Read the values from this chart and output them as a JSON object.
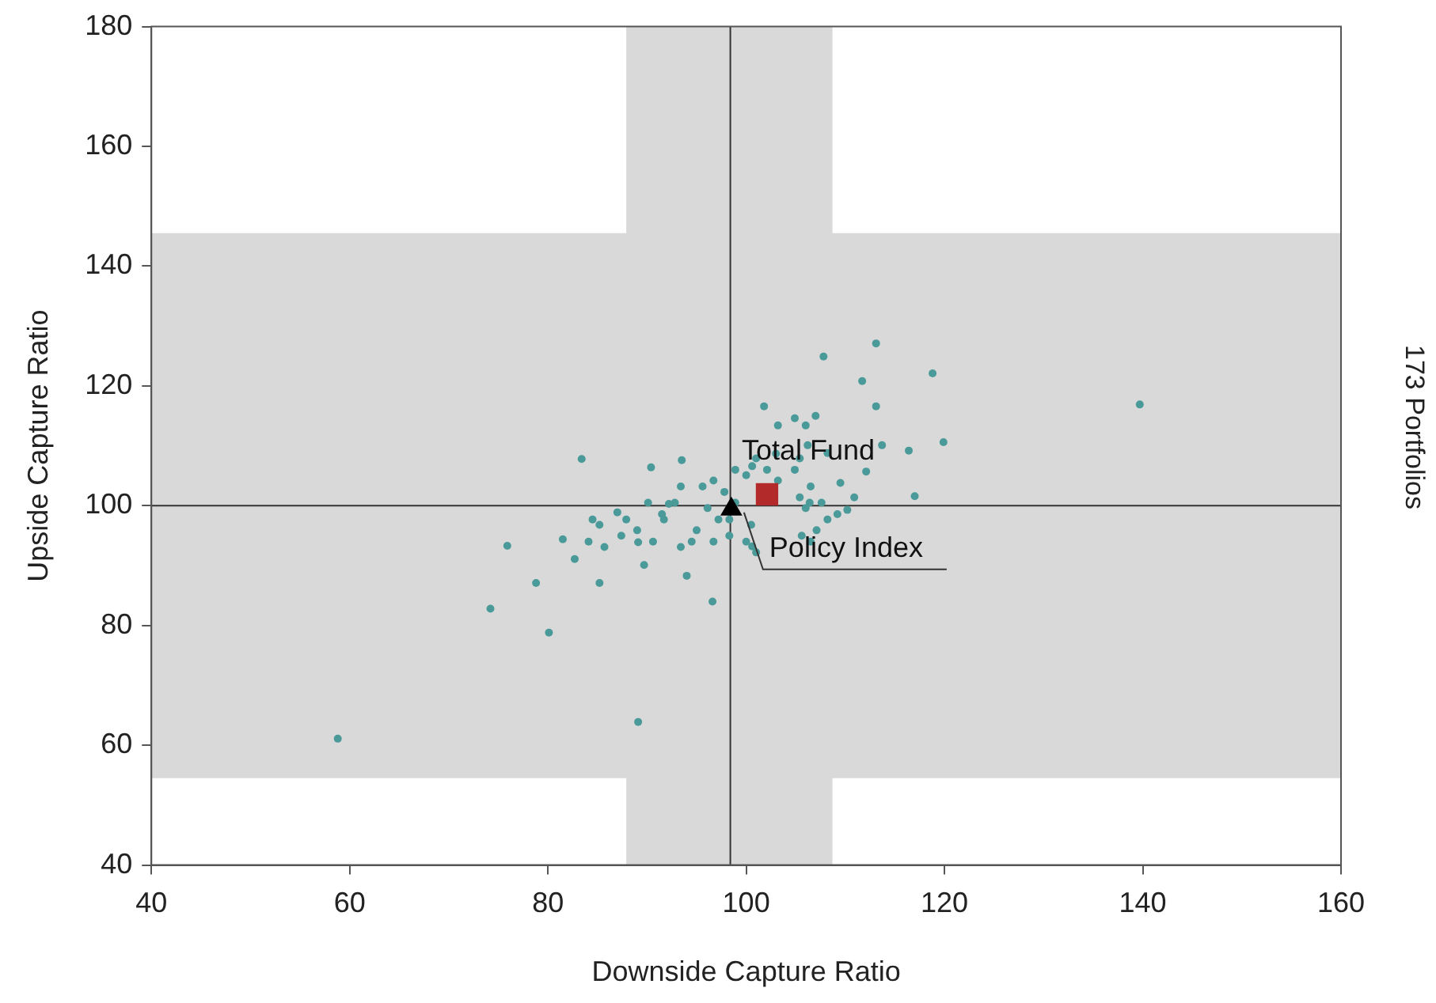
{
  "chart_data": {
    "type": "scatter",
    "xlabel": "Downside Capture Ratio",
    "ylabel": "Upside Capture Ratio",
    "annotations": [
      "173 Portfolios"
    ],
    "xlim": [
      40,
      160
    ],
    "xticks": [
      40,
      60,
      80,
      100,
      120,
      140,
      160
    ],
    "ylim": [
      40,
      180
    ],
    "yticks": [
      40,
      60,
      80,
      100,
      120,
      140,
      160,
      180
    ],
    "grid": false,
    "legend": false,
    "ref_lines": [
      {
        "axis": "x",
        "value": 98.4,
        "color": "#333333"
      },
      {
        "axis": "y",
        "value": 100,
        "color": "#333333"
      }
    ],
    "bands": [
      {
        "axis": "y",
        "from": 54.5,
        "to": 145.5,
        "color": "#d9d9d9"
      },
      {
        "axis": "x",
        "from": 87.9,
        "to": 108.7,
        "color": "#d9d9d9"
      }
    ],
    "series": [
      {
        "color": "#4a9a9a",
        "marker": "circle",
        "x": [
          58.8,
          89.1,
          74.2,
          80.1,
          78.8,
          75.9,
          82.7,
          85.2,
          81.5,
          84.5,
          83.4,
          89.7,
          89.1,
          94.0,
          96.6,
          90.4,
          93.5,
          87.0,
          92.2,
          101.8,
          104.9,
          107.0,
          107.8,
          113.1,
          111.7,
          113.1,
          118.8,
          113.7,
          116.4,
          119.9,
          112.1,
          109.5,
          117.0,
          110.2,
          139.7,
          106.2,
          100.6,
          103.0,
          100.6,
          105.6,
          106.4,
          95.6,
          96.7,
          97.8,
          100.0,
          98.9,
          96.1,
          97.2,
          95.0,
          98.3,
          96.7,
          94.5,
          93.4,
          100.0,
          101.0,
          105.4,
          106.5,
          107.6,
          108.2,
          107.1,
          106.0,
          103.2,
          104.9,
          102.1,
          91.7,
          90.6,
          89.0,
          87.4,
          85.7,
          84.1,
          85.2,
          87.9,
          90.1,
          93.4,
          92.8,
          91.5,
          98.3,
          100.5,
          106.5,
          110.9,
          109.2,
          105.4,
          108.2,
          103.2,
          106.0,
          98.9,
          101.0
        ],
        "values": [
          61.1,
          63.9,
          82.8,
          78.8,
          87.1,
          93.3,
          91.1,
          87.1,
          94.4,
          97.7,
          107.8,
          90.1,
          93.9,
          88.3,
          84.0,
          106.4,
          107.6,
          98.9,
          100.3,
          116.6,
          114.6,
          115.0,
          124.9,
          127.1,
          120.8,
          116.6,
          122.1,
          110.1,
          109.2,
          110.6,
          105.7,
          103.8,
          101.6,
          99.3,
          116.9,
          110.1,
          106.6,
          108.7,
          93.2,
          95.0,
          100.5,
          103.2,
          104.2,
          102.3,
          105.1,
          100.5,
          99.6,
          97.7,
          95.9,
          95.0,
          94.0,
          94.0,
          93.1,
          94.0,
          92.2,
          101.4,
          103.2,
          100.5,
          97.7,
          95.9,
          99.6,
          104.2,
          106.0,
          106.0,
          97.7,
          94.0,
          95.9,
          95.0,
          93.1,
          94.0,
          96.8,
          97.7,
          100.5,
          103.2,
          100.5,
          98.6,
          97.7,
          96.8,
          94.0,
          101.4,
          98.6,
          107.9,
          108.8,
          113.4,
          113.4,
          106.0,
          107.9
        ]
      },
      {
        "name": "Total Fund",
        "color": "#b22a2a",
        "marker": "square",
        "x": [
          102.1
        ],
        "values": [
          101.9
        ]
      },
      {
        "name": "Policy Index",
        "color": "#000000",
        "marker": "triangle",
        "x": [
          98.5
        ],
        "values": [
          99.4
        ]
      }
    ]
  }
}
